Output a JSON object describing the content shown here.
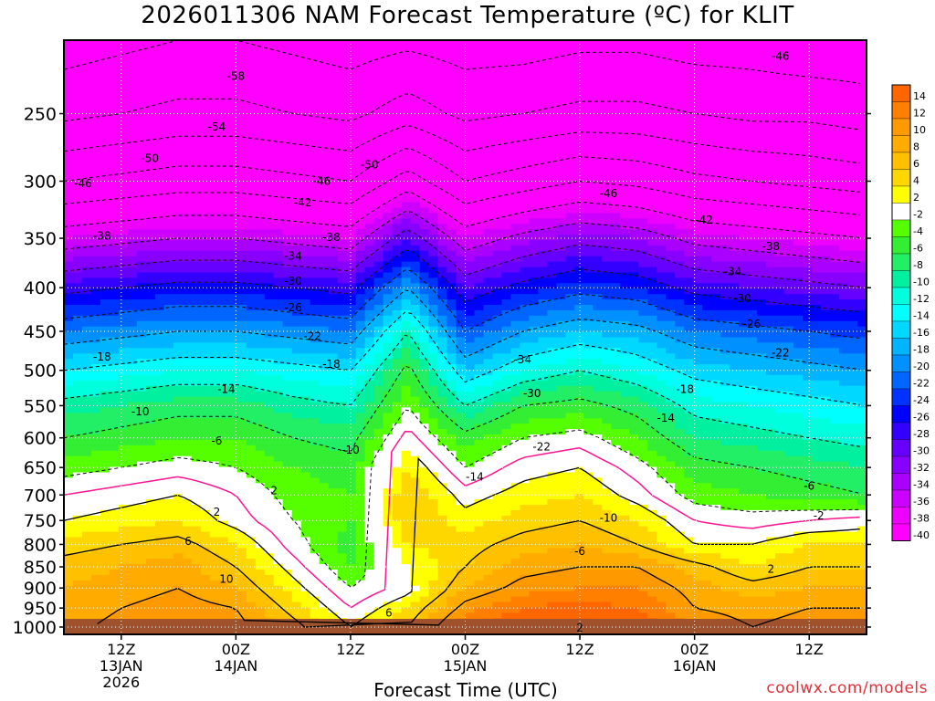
{
  "title": "2026011306 NAM Forecast Temperature (ºC) for KLIT",
  "watermark": "coolwx.com/models",
  "colors": {
    "ground": "#a0522d",
    "freezing_line": "#ff1493",
    "contour": "#000000"
  },
  "chart_data": {
    "type": "heatmap",
    "title": "2026011306 NAM Forecast Temperature (ºC) for KLIT",
    "xlabel": "Forecast Time (UTC)",
    "ylabel": "",
    "y_axis": {
      "scale": "log",
      "reversed": true,
      "ylim": [
        1020,
        205
      ],
      "ticks": [
        250,
        300,
        350,
        400,
        450,
        500,
        550,
        600,
        650,
        700,
        750,
        800,
        850,
        900,
        950,
        1000
      ]
    },
    "x_axis": {
      "xlim_hours": [
        6,
        90
      ],
      "ticks": [
        {
          "hour": 12,
          "lines": [
            "12Z",
            "13JAN",
            "2026"
          ]
        },
        {
          "hour": 24,
          "lines": [
            "00Z",
            "14JAN"
          ]
        },
        {
          "hour": 36,
          "lines": [
            "12Z"
          ]
        },
        {
          "hour": 48,
          "lines": [
            "00Z",
            "15JAN"
          ]
        },
        {
          "hour": 60,
          "lines": [
            "12Z"
          ]
        },
        {
          "hour": 72,
          "lines": [
            "00Z",
            "16JAN"
          ]
        },
        {
          "hour": 84,
          "lines": [
            "12Z"
          ]
        }
      ]
    },
    "grid": true,
    "legend": {
      "placement": "right",
      "levels": [
        {
          "label": "14",
          "color": "#ff6600"
        },
        {
          "label": "12",
          "color": "#ff7f00"
        },
        {
          "label": "10",
          "color": "#ff9900"
        },
        {
          "label": "8",
          "color": "#ffab00"
        },
        {
          "label": "6",
          "color": "#ffc000"
        },
        {
          "label": "4",
          "color": "#ffd700"
        },
        {
          "label": "2",
          "color": "#ffff00"
        },
        {
          "label": "-2",
          "color": "#ffffff"
        },
        {
          "label": "-4",
          "color": "#55ff00"
        },
        {
          "label": "-6",
          "color": "#33ee33"
        },
        {
          "label": "-8",
          "color": "#22ee66"
        },
        {
          "label": "-10",
          "color": "#00f0a0"
        },
        {
          "label": "-12",
          "color": "#00ffdd"
        },
        {
          "label": "-14",
          "color": "#00ffff"
        },
        {
          "label": "-16",
          "color": "#00d8ff"
        },
        {
          "label": "-18",
          "color": "#00b4ff"
        },
        {
          "label": "-20",
          "color": "#0090ff"
        },
        {
          "label": "-22",
          "color": "#0066ff"
        },
        {
          "label": "-24",
          "color": "#0033ff"
        },
        {
          "label": "-26",
          "color": "#0000ff"
        },
        {
          "label": "-28",
          "color": "#3300ff"
        },
        {
          "label": "-30",
          "color": "#6600ff"
        },
        {
          "label": "-32",
          "color": "#8800ff"
        },
        {
          "label": "-34",
          "color": "#aa00ff"
        },
        {
          "label": "-36",
          "color": "#cc00ff"
        },
        {
          "label": "-38",
          "color": "#ee00ff"
        },
        {
          "label": "-40",
          "color": "#ff00ff"
        }
      ]
    },
    "temperature_profiles": {
      "hours": [
        6,
        12,
        18,
        24,
        30,
        36,
        42,
        48,
        54,
        60,
        66,
        72,
        78,
        84,
        90
      ],
      "levels_hpa": [
        1000,
        950,
        900,
        850,
        800,
        750,
        700,
        650,
        600,
        550,
        500,
        450,
        400,
        350,
        300,
        250,
        205
      ],
      "temps_c": [
        [
          9,
          11,
          12,
          11,
          7,
          2,
          6,
          14,
          16,
          17,
          16,
          12,
          10,
          11,
          12
        ],
        [
          8,
          10,
          11,
          10,
          5,
          0,
          4,
          11,
          14,
          15,
          14,
          10,
          9,
          10,
          10
        ],
        [
          8,
          9,
          10,
          8,
          3,
          -2,
          1,
          8,
          11,
          12,
          12,
          9,
          7,
          8,
          8
        ],
        [
          7,
          8,
          9,
          6,
          1,
          -4,
          2,
          6,
          9,
          10,
          10,
          7,
          4,
          6,
          6
        ],
        [
          5,
          6,
          7,
          4,
          -1,
          -5,
          4,
          5,
          7,
          8,
          6,
          2,
          2,
          4,
          4
        ],
        [
          2,
          3,
          4,
          1,
          -2,
          -4,
          6,
          3,
          5,
          6,
          4,
          0,
          -1,
          0,
          1
        ],
        [
          0,
          1,
          2,
          0,
          -3,
          -4,
          6,
          1,
          3,
          4,
          1,
          -3,
          -4,
          -5,
          -6
        ],
        [
          -3,
          -2,
          -1,
          -2,
          -4,
          -5,
          4,
          -2,
          1,
          2,
          -1,
          -5,
          -6,
          -7,
          -8
        ],
        [
          -6,
          -5,
          -4,
          -4,
          -6,
          -7,
          1,
          -5,
          -2,
          -1,
          -4,
          -8,
          -9,
          -10,
          -11
        ],
        [
          -9,
          -8,
          -7,
          -7,
          -9,
          -10,
          -2,
          -10,
          -6,
          -5,
          -7,
          -11,
          -12,
          -13,
          -14
        ],
        [
          -14,
          -13,
          -12,
          -12,
          -13,
          -14,
          -5,
          -16,
          -12,
          -10,
          -12,
          -15,
          -16,
          -17,
          -18
        ],
        [
          -20,
          -19,
          -18,
          -18,
          -19,
          -20,
          -10,
          -22,
          -18,
          -16,
          -17,
          -20,
          -21,
          -22,
          -23
        ],
        [
          -27,
          -26,
          -25,
          -25,
          -26,
          -27,
          -18,
          -28,
          -25,
          -23,
          -24,
          -27,
          -28,
          -29,
          -30
        ],
        [
          -36,
          -35,
          -34,
          -34,
          -35,
          -36,
          -28,
          -36,
          -33,
          -31,
          -32,
          -35,
          -36,
          -37,
          -38
        ],
        [
          -46,
          -45,
          -44,
          -44,
          -45,
          -46,
          -40,
          -46,
          -44,
          -42,
          -43,
          -45,
          -46,
          -47,
          -48
        ],
        [
          -55,
          -54,
          -53,
          -53,
          -54,
          -55,
          -52,
          -55,
          -54,
          -53,
          -53,
          -54,
          -55,
          -55,
          -56
        ],
        [
          -60,
          -59,
          -58,
          -58,
          -59,
          -60,
          -59,
          -60,
          -60,
          -59,
          -59,
          -60,
          -60,
          -61,
          -61
        ]
      ]
    },
    "contours": [
      {
        "value": -58,
        "label": "-58",
        "label_at": {
          "hour": 24,
          "hpa": 226
        }
      },
      {
        "value": -54,
        "label": "-54",
        "label_at": {
          "hour": 22,
          "hpa": 259
        }
      },
      {
        "value": -50,
        "label": "-50",
        "label_at": {
          "hour": 15,
          "hpa": 282
        }
      },
      {
        "value": -50,
        "label": "-50",
        "label_at": {
          "hour": 38,
          "hpa": 287
        }
      },
      {
        "value": -46,
        "label": "-46",
        "label_at": {
          "hour": 8,
          "hpa": 302
        }
      },
      {
        "value": -46,
        "label": "-46",
        "label_at": {
          "hour": 33,
          "hpa": 300
        }
      },
      {
        "value": -46,
        "label": "-46",
        "label_at": {
          "hour": 63,
          "hpa": 310
        }
      },
      {
        "value": -46,
        "label": "-46",
        "label_at": {
          "hour": 81,
          "hpa": 214
        }
      },
      {
        "value": -42,
        "label": "-42",
        "label_at": {
          "hour": 31,
          "hpa": 318
        }
      },
      {
        "value": -42,
        "label": "-42",
        "label_at": {
          "hour": 73,
          "hpa": 333
        }
      },
      {
        "value": -38,
        "label": "-38",
        "label_at": {
          "hour": 10,
          "hpa": 348
        }
      },
      {
        "value": -38,
        "label": "-38",
        "label_at": {
          "hour": 34,
          "hpa": 349
        }
      },
      {
        "value": -38,
        "label": "-38",
        "label_at": {
          "hour": 80,
          "hpa": 358
        }
      },
      {
        "value": -34,
        "label": "-34",
        "label_at": {
          "hour": 30,
          "hpa": 367
        }
      },
      {
        "value": -34,
        "label": "-34",
        "label_at": {
          "hour": 54,
          "hpa": 486
        }
      },
      {
        "value": -34,
        "label": "-34",
        "label_at": {
          "hour": 76,
          "hpa": 383
        }
      },
      {
        "value": -30,
        "label": "-30",
        "label_at": {
          "hour": 30,
          "hpa": 393
        }
      },
      {
        "value": -30,
        "label": "-30",
        "label_at": {
          "hour": 55,
          "hpa": 532
        }
      },
      {
        "value": -30,
        "label": "-30",
        "label_at": {
          "hour": 77,
          "hpa": 412
        }
      },
      {
        "value": -26,
        "label": "-26",
        "label_at": {
          "hour": 30,
          "hpa": 422
        }
      },
      {
        "value": -26,
        "label": "-26",
        "label_at": {
          "hour": 78,
          "hpa": 441
        }
      },
      {
        "value": -22,
        "label": "-22",
        "label_at": {
          "hour": 32,
          "hpa": 456
        }
      },
      {
        "value": -22,
        "label": "-22",
        "label_at": {
          "hour": 56,
          "hpa": 615
        }
      },
      {
        "value": -22,
        "label": "-22",
        "label_at": {
          "hour": 81,
          "hpa": 477
        }
      },
      {
        "value": -18,
        "label": "-18",
        "label_at": {
          "hour": 10,
          "hpa": 482
        }
      },
      {
        "value": -18,
        "label": "-18",
        "label_at": {
          "hour": 34,
          "hpa": 492
        }
      },
      {
        "value": -18,
        "label": "-18",
        "label_at": {
          "hour": 71,
          "hpa": 526
        }
      },
      {
        "value": -14,
        "label": "-14",
        "label_at": {
          "hour": 23,
          "hpa": 526
        }
      },
      {
        "value": -14,
        "label": "-14",
        "label_at": {
          "hour": 49,
          "hpa": 667
        }
      },
      {
        "value": -14,
        "label": "-14",
        "label_at": {
          "hour": 69,
          "hpa": 569
        }
      },
      {
        "value": -10,
        "label": "-10",
        "label_at": {
          "hour": 14,
          "hpa": 559
        }
      },
      {
        "value": -10,
        "label": "-10",
        "label_at": {
          "hour": 36,
          "hpa": 620
        }
      },
      {
        "value": -10,
        "label": "-10",
        "label_at": {
          "hour": 63,
          "hpa": 745
        }
      },
      {
        "value": -6,
        "label": "-6",
        "label_at": {
          "hour": 22,
          "hpa": 605
        }
      },
      {
        "value": -6,
        "label": "-6",
        "label_at": {
          "hour": 60,
          "hpa": 815
        }
      },
      {
        "value": -6,
        "label": "-6",
        "label_at": {
          "hour": 84,
          "hpa": 683
        }
      },
      {
        "value": -2,
        "label": "-2",
        "label_at": {
          "hour": 85,
          "hpa": 740
        }
      },
      {
        "value": 2,
        "label": "2",
        "label_at": {
          "hour": 28,
          "hpa": 692
        }
      },
      {
        "value": 2,
        "label": "2",
        "label_at": {
          "hour": 22,
          "hpa": 733
        }
      },
      {
        "value": 2,
        "label": "2",
        "label_at": {
          "hour": 60,
          "hpa": 1002
        }
      },
      {
        "value": 2,
        "label": "2",
        "label_at": {
          "hour": 80,
          "hpa": 855
        }
      },
      {
        "value": 6,
        "label": "6",
        "label_at": {
          "hour": 19,
          "hpa": 793
        }
      },
      {
        "value": 6,
        "label": "6",
        "label_at": {
          "hour": 40,
          "hpa": 963
        }
      },
      {
        "value": 10,
        "label": "10",
        "label_at": {
          "hour": 23,
          "hpa": 879
        }
      }
    ]
  }
}
